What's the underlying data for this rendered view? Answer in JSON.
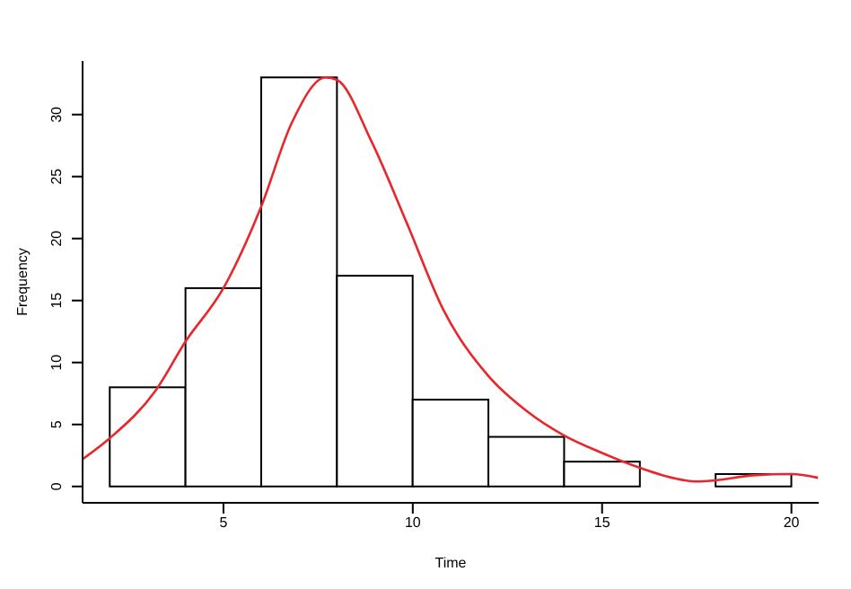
{
  "chart_data": {
    "type": "histogram",
    "xlabel": "Time",
    "ylabel": "Frequency",
    "bins": [
      2,
      4,
      6,
      8,
      10,
      12,
      14,
      16,
      18,
      20
    ],
    "values": [
      8,
      16,
      33,
      17,
      7,
      4,
      2,
      0,
      1
    ],
    "color": "#ffffff",
    "series": [
      {
        "type": "line",
        "color": "#e8262b",
        "x": [
          1.28,
          2,
          3.2,
          4,
          5,
          6,
          6.8,
          7.7,
          8,
          8.9,
          9.85,
          10.8,
          12,
          13,
          14,
          15,
          16,
          17,
          17.5,
          18,
          19,
          20,
          20.7
        ],
        "values": [
          2.2,
          3.9,
          7.7,
          11.7,
          16,
          22.6,
          29.3,
          33,
          32.8,
          27.9,
          21.2,
          14.3,
          8.9,
          6.1,
          4.1,
          2.7,
          1.5,
          0.6,
          0.4,
          0.5,
          0.9,
          1.0,
          0.7
        ]
      }
    ],
    "xlim": [
      1.28,
      20.72
    ],
    "ylim": [
      -1.32,
      34.32
    ],
    "xticks": [
      5,
      10,
      15,
      20
    ],
    "yticks": [
      0,
      5,
      10,
      15,
      20,
      25,
      30
    ],
    "marker": "none",
    "line_style": "solid"
  }
}
